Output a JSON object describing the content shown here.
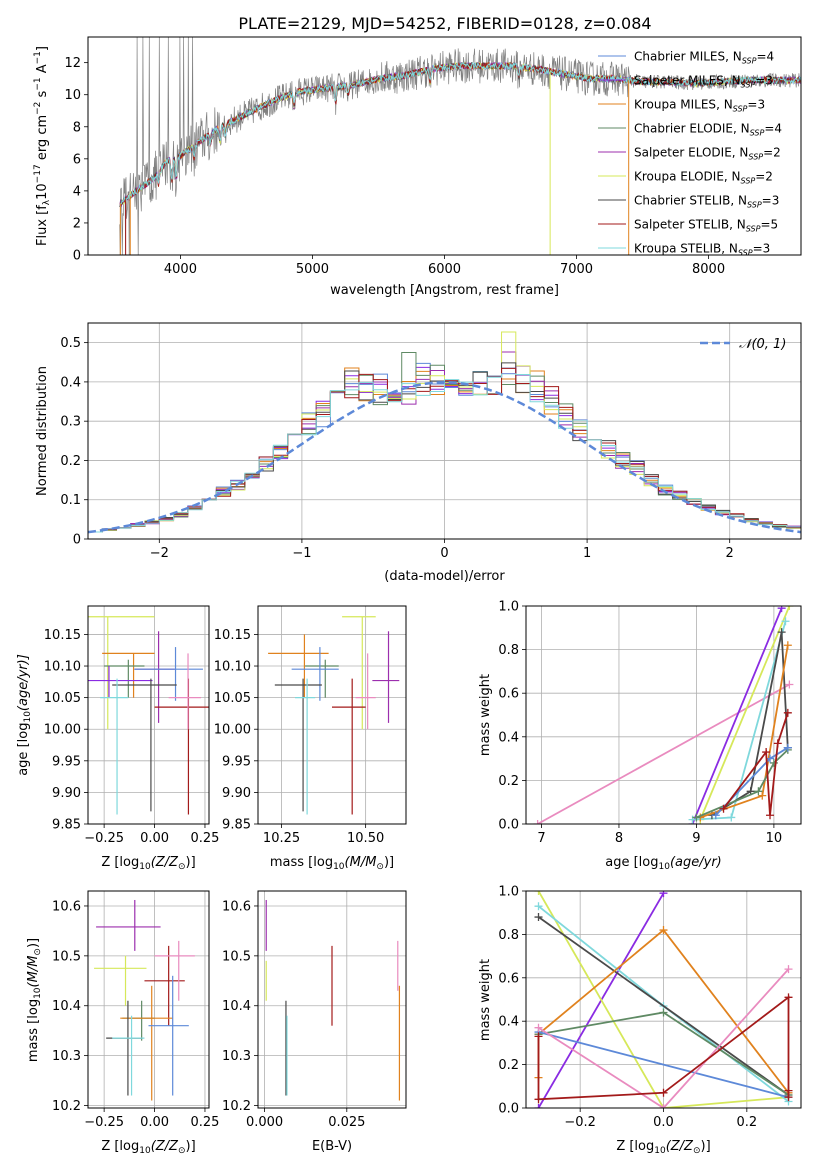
{
  "figure": {
    "title": "PLATE=2129, MJD=54252, FIBERID=0128, z=0.084",
    "colors": {
      "chabrier_miles": "#5d89d8",
      "salpeter_miles": "#8a2be2",
      "kroupa_miles": "#e0821e",
      "chabrier_elodie": "#5f8a64",
      "salpeter_elodie": "#9c2fae",
      "kroupa_elodie": "#d6e85a",
      "chabrier_stelib": "#4a4a4a",
      "salpeter_stelib": "#a31a1a",
      "kroupa_stelib": "#7fd8dc",
      "pink": "#e98bbf",
      "data_gray": "#808080"
    }
  },
  "chart_data": [
    {
      "id": "spectrum",
      "type": "line",
      "title": "PLATE=2129, MJD=54252, FIBERID=0128, z=0.084",
      "xlabel": "wavelength [Angstrom, rest frame]",
      "ylabel": "Flux [f",
      "ylabel_parts": [
        "Flux [f",
        "λ",
        "10",
        "−17",
        " erg cm",
        "−2",
        " s",
        "−1",
        " A",
        "−1",
        "]"
      ],
      "xlim": [
        3300,
        8700
      ],
      "ylim": [
        0,
        13.6
      ],
      "xticks": [
        4000,
        5000,
        6000,
        7000,
        8000
      ],
      "yticks": [
        0,
        2,
        4,
        6,
        8,
        10,
        12
      ],
      "grid": false,
      "legend_position": "top-right",
      "continuum_anchors": {
        "x": [
          3540,
          3700,
          3800,
          3900,
          4000,
          4100,
          4300,
          4500,
          4700,
          4900,
          5100,
          5300,
          5500,
          5700,
          5900,
          6100,
          6300,
          6500,
          6700,
          6900,
          7100,
          7300,
          7500,
          7700,
          7900,
          8100,
          8300,
          8700
        ],
        "y": [
          3.2,
          4.2,
          4.8,
          5.9,
          6.2,
          6.8,
          8.0,
          8.8,
          9.6,
          10.2,
          10.4,
          10.6,
          11.0,
          11.2,
          11.6,
          11.8,
          11.8,
          11.8,
          11.6,
          11.3,
          11.0,
          11.0,
          10.8,
          10.8,
          10.7,
          10.8,
          10.9,
          10.9
        ]
      },
      "legend": [
        {
          "label": "Chabrier MILES",
          "n": "4",
          "color": "#5d89d8"
        },
        {
          "label": "Salpeter MILES",
          "n": "3",
          "color": "#8a2be2"
        },
        {
          "label": "Kroupa MILES",
          "n": "3",
          "color": "#e0821e"
        },
        {
          "label": "Chabrier ELODIE",
          "n": "4",
          "color": "#5f8a64"
        },
        {
          "label": "Salpeter ELODIE",
          "n": "2",
          "color": "#9c2fae"
        },
        {
          "label": "Kroupa ELODIE",
          "n": "2",
          "color": "#d6e85a"
        },
        {
          "label": "Chabrier STELIB",
          "n": "3",
          "color": "#4a4a4a"
        },
        {
          "label": "Salpeter STELIB",
          "n": "5",
          "color": "#a31a1a"
        },
        {
          "label": "Kroupa STELIB",
          "n": "3",
          "color": "#7fd8dc"
        }
      ],
      "legend_subscript": "SSP"
    },
    {
      "id": "residuals",
      "type": "line",
      "xlabel": "(data-model)/error",
      "ylabel": "Normed distribution",
      "xlim": [
        -2.5,
        2.5
      ],
      "ylim": [
        0,
        0.55
      ],
      "xticks": [
        -2,
        -1,
        0,
        1,
        2
      ],
      "xtick_labels": [
        "−2",
        "−1",
        "0",
        "1",
        "2"
      ],
      "yticks": [
        0.0,
        0.1,
        0.2,
        0.3,
        0.4,
        0.5
      ],
      "grid": true,
      "legend_position": "top-right",
      "gaussian_label": "𝒩(0, 1)",
      "gaussian_color": "#5d89d8",
      "hist_bin_width": 0.1,
      "hist_centers": [
        -2.45,
        -2.35,
        -2.25,
        -2.15,
        -2.05,
        -1.95,
        -1.85,
        -1.75,
        -1.65,
        -1.55,
        -1.45,
        -1.35,
        -1.25,
        -1.15,
        -1.05,
        -0.95,
        -0.85,
        -0.75,
        -0.65,
        -0.55,
        -0.45,
        -0.35,
        -0.25,
        -0.15,
        -0.05,
        0.05,
        0.15,
        0.25,
        0.35,
        0.45,
        0.55,
        0.65,
        0.75,
        0.85,
        0.95,
        1.05,
        1.15,
        1.25,
        1.35,
        1.45,
        1.55,
        1.65,
        1.75,
        1.85,
        1.95,
        2.05,
        2.15,
        2.25,
        2.35,
        2.45
      ],
      "hist_mean": [
        0.02,
        0.024,
        0.03,
        0.036,
        0.042,
        0.05,
        0.062,
        0.08,
        0.1,
        0.12,
        0.14,
        0.16,
        0.19,
        0.22,
        0.25,
        0.29,
        0.32,
        0.36,
        0.4,
        0.39,
        0.38,
        0.39,
        0.38,
        0.41,
        0.4,
        0.41,
        0.4,
        0.39,
        0.4,
        0.44,
        0.41,
        0.39,
        0.35,
        0.31,
        0.28,
        0.26,
        0.23,
        0.2,
        0.18,
        0.15,
        0.125,
        0.11,
        0.095,
        0.08,
        0.068,
        0.058,
        0.048,
        0.04,
        0.034,
        0.03
      ]
    },
    {
      "id": "age-vs-Z",
      "type": "scatter",
      "xlabel": "Z [log",
      "ylabel": "age  [log",
      "xlim": [
        -0.33,
        0.27
      ],
      "ylim": [
        9.85,
        10.195
      ],
      "xticks": [
        -0.25,
        0.0,
        0.25
      ],
      "xtick_labels": [
        "−0.25",
        "0.00",
        "0.25"
      ],
      "yticks": [
        9.85,
        9.9,
        9.95,
        10.0,
        10.05,
        10.1,
        10.15
      ],
      "ytick_labels": [
        "9.85",
        "9.90",
        "9.95",
        "10.00",
        "10.05",
        "10.10",
        "10.15"
      ],
      "grid": true,
      "points": [
        {
          "x": -0.29,
          "y": 10.178,
          "xerr": 0.29,
          "ymin": 10.0,
          "ymax": 10.178,
          "color": "#d6e85a"
        },
        {
          "x": -0.13,
          "y": 10.12,
          "xerr": 0.13,
          "ymin": 10.05,
          "ymax": 10.12,
          "color": "#e0821e"
        },
        {
          "x": 0.0,
          "y": 10.095,
          "xerr": 0.1,
          "ymin": 10.01,
          "ymax": 10.155,
          "color": "#9c2fae"
        },
        {
          "x": -0.15,
          "y": 10.1,
          "xerr": 0.1,
          "ymin": 10.05,
          "ymax": 10.11,
          "color": "#5f8a64"
        },
        {
          "x": -0.28,
          "y": 10.077,
          "xerr": 0.27,
          "ymin": 10.05,
          "ymax": 10.1,
          "color": "#8a2be2"
        },
        {
          "x": 0.07,
          "y": 10.095,
          "xerr": 0.17,
          "ymin": 10.045,
          "ymax": 10.13,
          "color": "#5d89d8"
        },
        {
          "x": -0.05,
          "y": 10.07,
          "xerr": 0.16,
          "ymin": 9.87,
          "ymax": 10.08,
          "color": "#4a4a4a"
        },
        {
          "x": 0.14,
          "y": 10.035,
          "xerr": 0.14,
          "ymin": 9.865,
          "ymax": 10.08,
          "color": "#a31a1a"
        },
        {
          "x": -0.2,
          "y": 10.05,
          "xerr": 0.07,
          "ymin": 9.865,
          "ymax": 10.08,
          "color": "#7fd8dc"
        },
        {
          "x": 0.15,
          "y": 10.05,
          "xerr": 0.08,
          "ymin": 10.0,
          "ymax": 10.12,
          "color": "#e98bbf"
        }
      ]
    },
    {
      "id": "age-vs-mass",
      "type": "scatter",
      "xlabel": "mass [log",
      "xlim": [
        10.18,
        10.62
      ],
      "ylim": [
        9.85,
        10.195
      ],
      "xticks": [
        10.25,
        10.5
      ],
      "xtick_labels": [
        "10.25",
        "10.50"
      ],
      "yticks": [
        9.85,
        9.9,
        9.95,
        10.0,
        10.05,
        10.1,
        10.15
      ],
      "ytick_labels": [
        "9.85",
        "9.90",
        "9.95",
        "10.00",
        "10.05",
        "10.10",
        "10.15"
      ],
      "grid": true,
      "points": [
        {
          "x": 10.48,
          "y": 10.178,
          "xerr": 0.05,
          "ymin": 10.0,
          "ymax": 10.178,
          "color": "#d6e85a"
        },
        {
          "x": 10.3,
          "y": 10.12,
          "xerr": 0.09,
          "ymin": 10.05,
          "ymax": 10.15,
          "color": "#e0821e"
        },
        {
          "x": 10.56,
          "y": 10.077,
          "xerr": 0.04,
          "ymin": 10.01,
          "ymax": 10.155,
          "color": "#9c2fae"
        },
        {
          "x": 10.37,
          "y": 10.1,
          "xerr": 0.05,
          "ymin": 10.05,
          "ymax": 10.11,
          "color": "#5f8a64"
        },
        {
          "x": 10.35,
          "y": 10.095,
          "xerr": 0.07,
          "ymin": 10.045,
          "ymax": 10.13,
          "color": "#5d89d8"
        },
        {
          "x": 10.3,
          "y": 10.07,
          "xerr": 0.07,
          "ymin": 9.87,
          "ymax": 10.08,
          "color": "#4a4a4a"
        },
        {
          "x": 10.45,
          "y": 10.035,
          "xerr": 0.05,
          "ymin": 9.865,
          "ymax": 10.08,
          "color": "#a31a1a"
        },
        {
          "x": 10.32,
          "y": 10.05,
          "xerr": 0.03,
          "ymin": 9.865,
          "ymax": 10.08,
          "color": "#7fd8dc"
        },
        {
          "x": 10.5,
          "y": 10.05,
          "xerr": 0.03,
          "ymin": 10.0,
          "ymax": 10.12,
          "color": "#e98bbf"
        }
      ]
    },
    {
      "id": "weight-vs-age",
      "type": "line",
      "xlabel": "age  [log",
      "ylabel": "mass weight",
      "xlim": [
        6.8,
        10.35
      ],
      "ylim": [
        0,
        1.0
      ],
      "xticks": [
        7,
        8,
        9,
        10
      ],
      "yticks": [
        0.0,
        0.2,
        0.4,
        0.6,
        0.8,
        1.0
      ],
      "ytick_labels": [
        "0.0",
        "0.2",
        "0.4",
        "0.6",
        "0.8",
        "1.0"
      ],
      "grid": true,
      "series": [
        {
          "color": "#e98bbf",
          "x": [
            6.95,
            10.2
          ],
          "y": [
            0.0,
            0.64
          ]
        },
        {
          "color": "#8a2be2",
          "x": [
            8.95,
            10.1
          ],
          "y": [
            0.0,
            0.99
          ]
        },
        {
          "color": "#d6e85a",
          "x": [
            9.05,
            10.2
          ],
          "y": [
            0.02,
            1.0
          ]
        },
        {
          "color": "#7fd8dc",
          "x": [
            8.95,
            9.45,
            10.15
          ],
          "y": [
            0.02,
            0.03,
            0.93
          ]
        },
        {
          "color": "#4a4a4a",
          "x": [
            9.2,
            9.7,
            10.1,
            10.18
          ],
          "y": [
            0.04,
            0.15,
            0.88,
            0.35
          ]
        },
        {
          "color": "#e0821e",
          "x": [
            9.05,
            9.85,
            10.18
          ],
          "y": [
            0.03,
            0.13,
            0.82
          ]
        },
        {
          "color": "#5f8a64",
          "x": [
            9.0,
            9.8,
            10.0,
            10.18
          ],
          "y": [
            0.03,
            0.15,
            0.28,
            0.34
          ]
        },
        {
          "color": "#5d89d8",
          "x": [
            9.25,
            9.95,
            10.18
          ],
          "y": [
            0.04,
            0.3,
            0.35
          ]
        },
        {
          "color": "#a31a1a",
          "x": [
            9.35,
            9.9,
            9.95,
            10.05,
            10.18
          ],
          "y": [
            0.07,
            0.33,
            0.04,
            0.37,
            0.51
          ]
        }
      ]
    },
    {
      "id": "mass-vs-Z",
      "type": "scatter",
      "xlabel": "Z [log",
      "ylabel": "mass [log",
      "xlim": [
        -0.33,
        0.27
      ],
      "ylim": [
        10.195,
        10.63
      ],
      "xticks": [
        -0.25,
        0.0,
        0.25
      ],
      "xtick_labels": [
        "−0.25",
        "0.00",
        "0.25"
      ],
      "yticks": [
        10.2,
        10.3,
        10.4,
        10.5,
        10.6
      ],
      "ytick_labels": [
        "10.2",
        "10.3",
        "10.4",
        "10.5",
        "10.6"
      ],
      "grid": true,
      "points": [
        {
          "x": -0.13,
          "y": 10.558,
          "xerr": 0.16,
          "ymin": 10.51,
          "ymax": 10.612,
          "color": "#9c2fae"
        },
        {
          "x": -0.17,
          "y": 10.475,
          "xerr": 0.13,
          "ymin": 10.4,
          "ymax": 10.5,
          "color": "#d6e85a"
        },
        {
          "x": 0.05,
          "y": 10.45,
          "xerr": 0.1,
          "ymin": 10.36,
          "ymax": 10.52,
          "color": "#a31a1a"
        },
        {
          "x": 0.1,
          "y": 10.5,
          "xerr": 0.1,
          "ymin": 10.41,
          "ymax": 10.53,
          "color": "#e98bbf"
        },
        {
          "x": -0.08,
          "y": 10.375,
          "xerr": 0.08,
          "ymin": 10.33,
          "ymax": 10.41,
          "color": "#5f8a64"
        },
        {
          "x": -0.04,
          "y": 10.375,
          "xerr": 0.13,
          "ymin": 10.21,
          "ymax": 10.44,
          "color": "#e0821e"
        },
        {
          "x": 0.07,
          "y": 10.36,
          "xerr": 0.1,
          "ymin": 10.22,
          "ymax": 10.46,
          "color": "#5d89d8"
        },
        {
          "x": -0.15,
          "y": 10.335,
          "xerr": 0.09,
          "ymin": 10.22,
          "ymax": 10.41,
          "color": "#4a4a4a"
        },
        {
          "x": -0.13,
          "y": 10.335,
          "xerr": 0.08,
          "ymin": 10.22,
          "ymax": 10.38,
          "color": "#7fd8dc"
        }
      ]
    },
    {
      "id": "mass-vs-ebv",
      "type": "scatter",
      "xlabel": "E(B-V)",
      "xlim": [
        -0.002,
        0.043
      ],
      "ylim": [
        10.195,
        10.63
      ],
      "xticks": [
        0.0,
        0.025
      ],
      "xtick_labels": [
        "0.000",
        "0.025"
      ],
      "yticks": [
        10.2,
        10.3,
        10.4,
        10.5,
        10.6
      ],
      "ytick_labels": [
        "10.2",
        "10.3",
        "10.4",
        "10.5",
        "10.6"
      ],
      "grid": true,
      "points": [
        {
          "x": 0.0005,
          "ymin": 10.51,
          "ymax": 10.612,
          "color": "#9c2fae"
        },
        {
          "x": 0.0005,
          "ymin": 10.41,
          "ymax": 10.49,
          "color": "#d6e85a"
        },
        {
          "x": 0.0065,
          "ymin": 10.22,
          "ymax": 10.41,
          "color": "#4a4a4a"
        },
        {
          "x": 0.0068,
          "ymin": 10.22,
          "ymax": 10.38,
          "color": "#7fd8dc"
        },
        {
          "x": 0.0205,
          "ymin": 10.36,
          "ymax": 10.52,
          "color": "#a31a1a"
        },
        {
          "x": 0.0405,
          "ymin": 10.43,
          "ymax": 10.53,
          "color": "#e98bbf"
        },
        {
          "x": 0.041,
          "ymin": 10.21,
          "ymax": 10.44,
          "color": "#e0821e"
        }
      ]
    },
    {
      "id": "weight-vs-Z",
      "type": "line",
      "xlabel": "Z [log",
      "ylabel": "mass weight",
      "xlim": [
        -0.33,
        0.33
      ],
      "ylim": [
        0,
        1.0
      ],
      "xticks": [
        -0.2,
        0.0,
        0.2
      ],
      "xtick_labels": [
        "−0.2",
        "0.0",
        "0.2"
      ],
      "yticks": [
        0.0,
        0.2,
        0.4,
        0.6,
        0.8,
        1.0
      ],
      "ytick_labels": [
        "0.0",
        "0.2",
        "0.4",
        "0.6",
        "0.8",
        "1.0"
      ],
      "grid": true,
      "series": [
        {
          "color": "#8a2be2",
          "x": [
            -0.3,
            0.0
          ],
          "y": [
            0.0,
            0.99
          ]
        },
        {
          "color": "#d6e85a",
          "x": [
            -0.3,
            0.0,
            0.3
          ],
          "y": [
            1.0,
            0.0,
            0.05
          ]
        },
        {
          "color": "#7fd8dc",
          "x": [
            -0.3,
            0.0,
            0.3
          ],
          "y": [
            0.93,
            0.47,
            0.03
          ]
        },
        {
          "color": "#4a4a4a",
          "x": [
            -0.3,
            0.3
          ],
          "y": [
            0.88,
            0.06
          ]
        },
        {
          "color": "#e0821e",
          "x": [
            -0.3,
            -0.3,
            0.0,
            0.3
          ],
          "y": [
            0.14,
            0.34,
            0.82,
            0.07
          ]
        },
        {
          "color": "#5f8a64",
          "x": [
            -0.3,
            0.0,
            0.3
          ],
          "y": [
            0.34,
            0.44,
            0.06
          ]
        },
        {
          "color": "#5d89d8",
          "x": [
            -0.3,
            0.3
          ],
          "y": [
            0.35,
            0.05
          ]
        },
        {
          "color": "#e98bbf",
          "x": [
            -0.3,
            0.0,
            0.3
          ],
          "y": [
            0.37,
            0.0,
            0.64
          ]
        },
        {
          "color": "#a31a1a",
          "x": [
            -0.3,
            -0.3,
            0.0,
            0.3,
            0.3,
            0.3
          ],
          "y": [
            0.33,
            0.04,
            0.07,
            0.51,
            0.08,
            0.05
          ]
        }
      ]
    }
  ]
}
